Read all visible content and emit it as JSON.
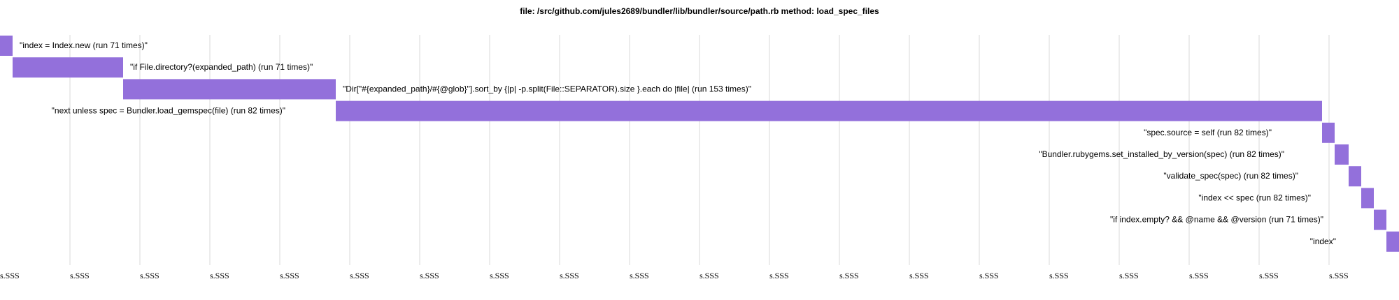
{
  "chart_data": {
    "type": "bar",
    "subtype": "gantt-timeline",
    "title": "file: /src/github.com/jules2689/bundler/lib/bundler/source/path.rb method: load_spec_files",
    "bar_color": "#9370DB",
    "grid_color": "#d8d8d8",
    "grid": true,
    "x_tick_count": 20,
    "x_tick_label": "s.SSS",
    "x_range": [
      0,
      100
    ],
    "bars": [
      {
        "label": "\"index = Index.new (run 71 times)\"",
        "start": 0.0,
        "end": 0.9
      },
      {
        "label": "\"if File.directory?(expanded_path) (run 71 times)\"",
        "start": 0.9,
        "end": 8.8
      },
      {
        "label": "\"Dir[\"#{expanded_path}/#{@glob}\"].sort_by {|p| -p.split(File::SEPARATOR).size }.each do |file| (run 153 times)\"",
        "start": 8.8,
        "end": 24.0
      },
      {
        "label": "\"next unless spec = Bundler.load_gemspec(file) (run 82 times)\"",
        "start": 24.0,
        "end": 94.5
      },
      {
        "label": "\"spec.source = self (run 82 times)\"",
        "start": 94.5,
        "end": 95.4
      },
      {
        "label": "\"Bundler.rubygems.set_installed_by_version(spec) (run 82 times)\"",
        "start": 95.4,
        "end": 96.4
      },
      {
        "label": "\"validate_spec(spec) (run 82 times)\"",
        "start": 96.4,
        "end": 97.3
      },
      {
        "label": "\"index << spec (run 82 times)\"",
        "start": 97.3,
        "end": 98.2
      },
      {
        "label": "\"if index.empty? && @name && @version (run 71 times)\"",
        "start": 98.2,
        "end": 99.1
      },
      {
        "label": "\"index\"",
        "start": 99.1,
        "end": 100.0
      }
    ]
  }
}
